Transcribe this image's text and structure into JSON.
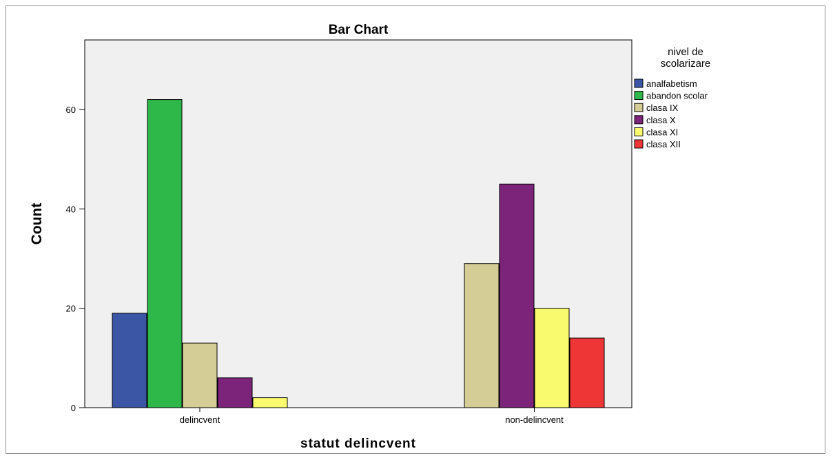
{
  "chart_data": {
    "type": "bar",
    "title": "Bar Chart",
    "xlabel": "statut  delincvent",
    "ylabel": "Count",
    "categories": [
      "delincvent",
      "non-delincvent"
    ],
    "ylim": [
      0,
      74
    ],
    "yticks": [
      0,
      20,
      40,
      60
    ],
    "grid": false,
    "legend_title": [
      "nivel de",
      "scolarizare"
    ],
    "legend_position": "right",
    "series": [
      {
        "name": "analfabetism",
        "color": "#3b56a5",
        "values": [
          19,
          0
        ]
      },
      {
        "name": "abandon scolar",
        "color": "#2fb84a",
        "values": [
          62,
          0
        ]
      },
      {
        "name": "clasa IX",
        "color": "#d5cd96",
        "values": [
          13,
          29
        ]
      },
      {
        "name": "clasa X",
        "color": "#7b2479",
        "values": [
          6,
          45
        ]
      },
      {
        "name": "clasa XI",
        "color": "#fafa6f",
        "values": [
          2,
          20
        ]
      },
      {
        "name": "clasa XII",
        "color": "#ee3636",
        "values": [
          0,
          14
        ]
      }
    ],
    "plot_background": "#f0f0f0"
  }
}
